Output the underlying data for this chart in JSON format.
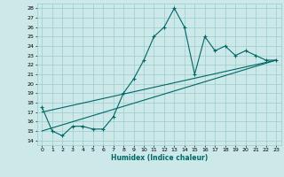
{
  "xlabel": "Humidex (Indice chaleur)",
  "bg_color": "#cce8e8",
  "grid_color": "#99cccc",
  "line_color": "#006666",
  "xlim": [
    -0.5,
    23.5
  ],
  "ylim": [
    13.5,
    28.5
  ],
  "xticks": [
    0,
    1,
    2,
    3,
    4,
    5,
    6,
    7,
    8,
    9,
    10,
    11,
    12,
    13,
    14,
    15,
    16,
    17,
    18,
    19,
    20,
    21,
    22,
    23
  ],
  "yticks": [
    14,
    15,
    16,
    17,
    18,
    19,
    20,
    21,
    22,
    23,
    24,
    25,
    26,
    27,
    28
  ],
  "series1_x": [
    0,
    1,
    2,
    3,
    4,
    5,
    6,
    7,
    8,
    9,
    10,
    11,
    12,
    13,
    14,
    15,
    16,
    17,
    18,
    19,
    20,
    21,
    22,
    23
  ],
  "series1_y": [
    17.5,
    15.0,
    14.5,
    15.5,
    15.5,
    15.2,
    15.2,
    16.5,
    19.0,
    20.5,
    22.5,
    25.0,
    26.0,
    28.0,
    26.0,
    21.0,
    25.0,
    23.5,
    24.0,
    23.0,
    23.5,
    23.0,
    22.5,
    22.5
  ],
  "line1_x": [
    0,
    23
  ],
  "line1_y": [
    15.0,
    22.5
  ],
  "line2_x": [
    0,
    23
  ],
  "line2_y": [
    17.0,
    22.5
  ]
}
